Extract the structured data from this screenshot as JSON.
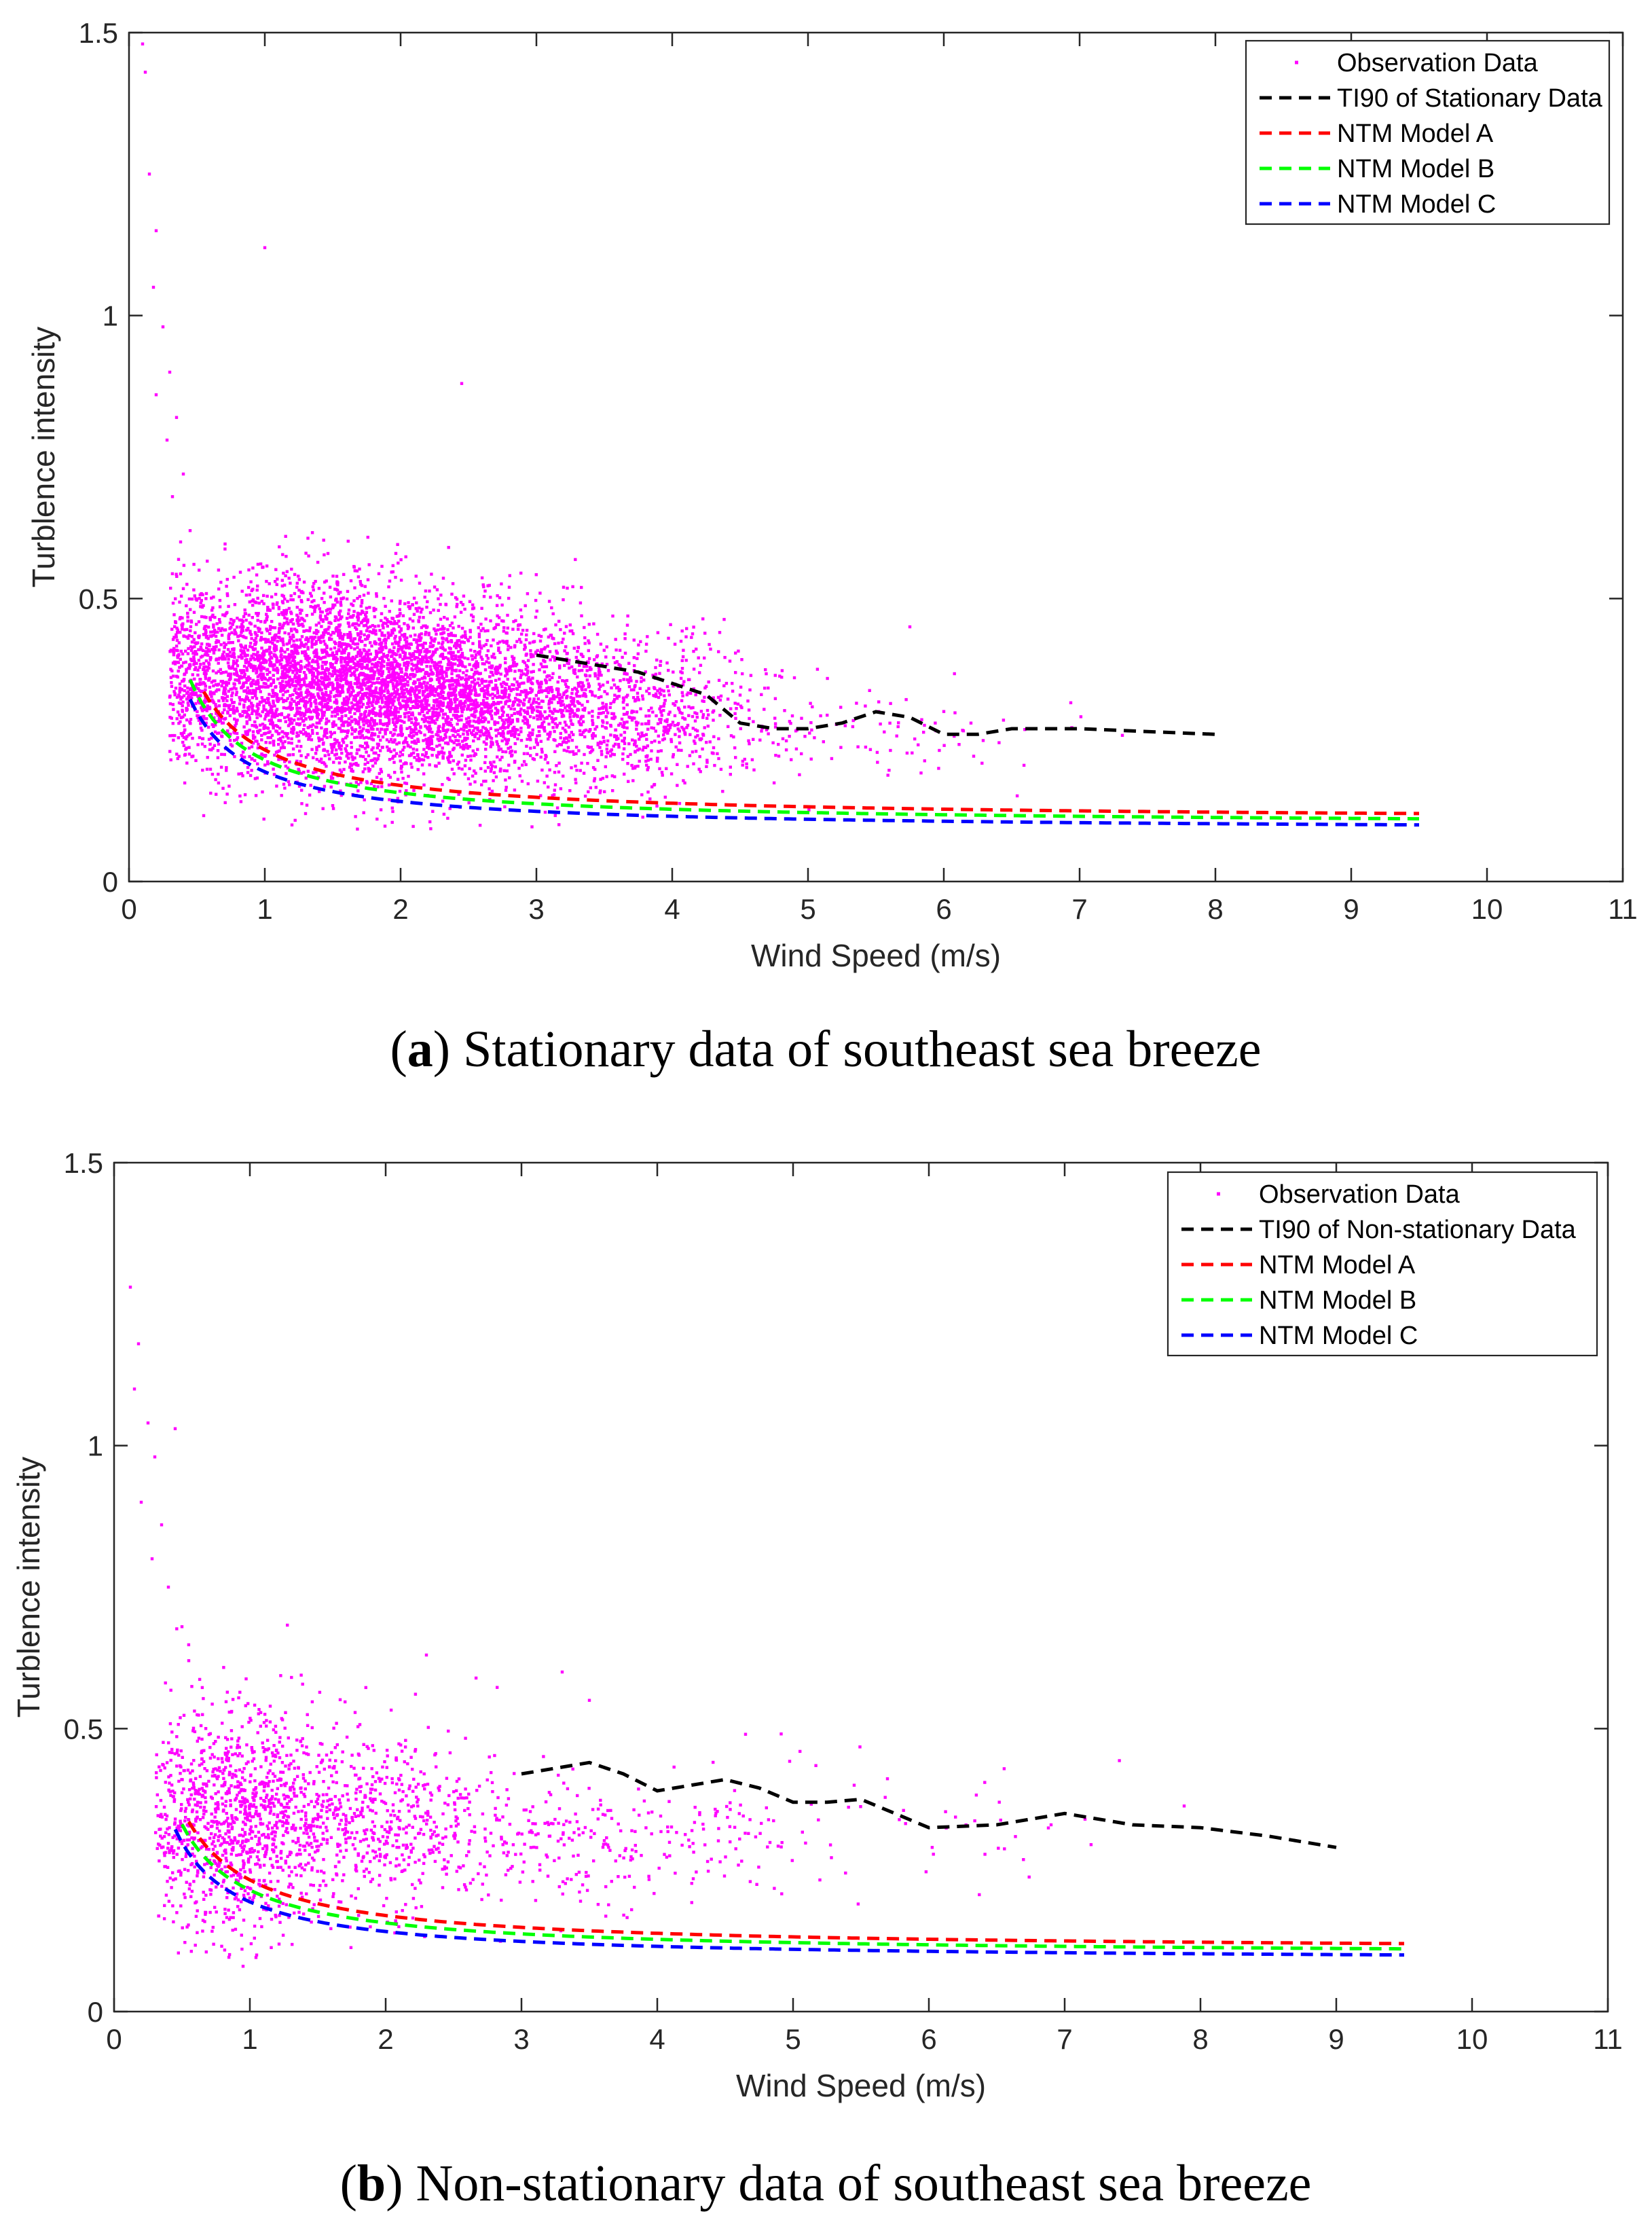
{
  "chart_data": [
    {
      "type": "scatter",
      "caption_letter": "a",
      "caption_text": "Stationary data of southeast sea breeze",
      "xlabel": "Wind Speed (m/s)",
      "ylabel": "Turblence intensity",
      "xlim": [
        0,
        11
      ],
      "ylim": [
        0,
        1.5
      ],
      "xticks": [
        "0",
        "1",
        "2",
        "3",
        "4",
        "5",
        "6",
        "7",
        "8",
        "9",
        "10",
        "11"
      ],
      "yticks": [
        "0",
        "0.5",
        "1",
        "1.5"
      ],
      "legend_position": "top-right",
      "scatter": {
        "name": "Observation Data",
        "color": "#ff00ff",
        "count": 6500,
        "clusters": [
          {
            "x_mean": 1.2,
            "x_sd": 0.55,
            "y_mean": 0.36,
            "y_sd": 0.085,
            "weight": 0.45
          },
          {
            "x_mean": 2.3,
            "x_sd": 0.55,
            "y_mean": 0.33,
            "y_sd": 0.075,
            "weight": 0.4
          },
          {
            "x_mean": 3.6,
            "x_sd": 0.55,
            "y_mean": 0.3,
            "y_sd": 0.07,
            "weight": 0.13
          },
          {
            "x_mean": 5.3,
            "x_sd": 0.8,
            "y_mean": 0.26,
            "y_sd": 0.04,
            "weight": 0.02
          }
        ],
        "outliers": [
          {
            "x": 0.15,
            "y": 1.25
          },
          {
            "x": 0.2,
            "y": 1.15
          },
          {
            "x": 0.18,
            "y": 1.05
          },
          {
            "x": 0.25,
            "y": 0.98
          },
          {
            "x": 0.3,
            "y": 0.9
          },
          {
            "x": 0.2,
            "y": 0.86
          },
          {
            "x": 0.35,
            "y": 0.82
          },
          {
            "x": 0.28,
            "y": 0.78
          },
          {
            "x": 0.4,
            "y": 0.72
          },
          {
            "x": 0.32,
            "y": 0.68
          },
          {
            "x": 0.45,
            "y": 0.62
          },
          {
            "x": 0.38,
            "y": 0.6
          },
          {
            "x": 1.0,
            "y": 1.12
          },
          {
            "x": 0.12,
            "y": 1.43
          },
          {
            "x": 0.1,
            "y": 1.48
          },
          {
            "x": 2.45,
            "y": 0.88
          },
          {
            "x": 5.75,
            "y": 0.45
          },
          {
            "x": 4.35,
            "y": 0.44
          },
          {
            "x": 4.9,
            "y": 0.36
          },
          {
            "x": 3.2,
            "y": 0.52
          },
          {
            "x": 2.8,
            "y": 0.52
          },
          {
            "x": 1.2,
            "y": 0.1
          },
          {
            "x": 1.3,
            "y": 0.12
          },
          {
            "x": 6.2,
            "y": 0.28
          }
        ]
      },
      "series": [
        {
          "name": "TI90 of Stationary Data",
          "color": "#000000",
          "x": [
            3.0,
            3.25,
            3.5,
            3.75,
            4.0,
            4.25,
            4.5,
            4.75,
            5.0,
            5.25,
            5.5,
            5.75,
            6.0,
            6.25,
            6.5,
            7.0,
            7.5,
            8.0
          ],
          "y": [
            0.4,
            0.39,
            0.38,
            0.37,
            0.35,
            0.33,
            0.28,
            0.27,
            0.27,
            0.28,
            0.3,
            0.29,
            0.26,
            0.26,
            0.27,
            0.27,
            0.265,
            0.26
          ]
        },
        {
          "name": "NTM Model A",
          "color": "#ff0000",
          "a": 0.07,
          "b": 0.78,
          "x_start": 0.55,
          "x_end": 9.5
        },
        {
          "name": "NTM Model B",
          "color": "#00ff00",
          "a": 0.06,
          "b": 0.72,
          "x_start": 0.45,
          "x_end": 9.5
        },
        {
          "name": "NTM Model C",
          "color": "#0000ff",
          "a": 0.05,
          "b": 0.65,
          "x_start": 0.45,
          "x_end": 9.5
        }
      ]
    },
    {
      "type": "scatter",
      "caption_letter": "b",
      "caption_text": "Non-stationary data of southeast sea breeze",
      "xlabel": "Wind Speed (m/s)",
      "ylabel": "Turblence intensity",
      "xlim": [
        0,
        11
      ],
      "ylim": [
        0,
        1.5
      ],
      "xticks": [
        "0",
        "1",
        "2",
        "3",
        "4",
        "5",
        "6",
        "7",
        "8",
        "9",
        "10",
        "11"
      ],
      "yticks": [
        "0",
        "0.5",
        "1",
        "1.5"
      ],
      "legend_position": "top-right",
      "scatter": {
        "name": "Observation Data",
        "color": "#ff00ff",
        "count": 2000,
        "clusters": [
          {
            "x_mean": 0.9,
            "x_sd": 0.35,
            "y_mean": 0.34,
            "y_sd": 0.1,
            "weight": 0.55
          },
          {
            "x_mean": 1.9,
            "x_sd": 0.5,
            "y_mean": 0.33,
            "y_sd": 0.08,
            "weight": 0.3
          },
          {
            "x_mean": 3.5,
            "x_sd": 0.7,
            "y_mean": 0.3,
            "y_sd": 0.06,
            "weight": 0.12
          },
          {
            "x_mean": 5.5,
            "x_sd": 1.0,
            "y_mean": 0.33,
            "y_sd": 0.05,
            "weight": 0.03
          }
        ],
        "outliers": [
          {
            "x": 0.12,
            "y": 1.28
          },
          {
            "x": 0.18,
            "y": 1.18
          },
          {
            "x": 0.15,
            "y": 1.1
          },
          {
            "x": 0.25,
            "y": 1.04
          },
          {
            "x": 0.3,
            "y": 0.98
          },
          {
            "x": 0.2,
            "y": 0.9
          },
          {
            "x": 0.45,
            "y": 1.03
          },
          {
            "x": 0.35,
            "y": 0.86
          },
          {
            "x": 0.28,
            "y": 0.8
          },
          {
            "x": 0.4,
            "y": 0.75
          },
          {
            "x": 0.5,
            "y": 0.68
          },
          {
            "x": 0.55,
            "y": 0.62
          },
          {
            "x": 3.3,
            "y": 0.6
          },
          {
            "x": 2.3,
            "y": 0.63
          },
          {
            "x": 4.65,
            "y": 0.49
          },
          {
            "x": 5.45,
            "y": 0.4
          },
          {
            "x": 3.5,
            "y": 0.55
          },
          {
            "x": 0.95,
            "y": 0.08
          },
          {
            "x": 1.05,
            "y": 0.1
          },
          {
            "x": 7.15,
            "y": 0.34
          },
          {
            "x": 6.9,
            "y": 0.33
          }
        ]
      },
      "series": [
        {
          "name": "TI90 of Non-stationary Data",
          "color": "#000000",
          "x": [
            3.0,
            3.25,
            3.5,
            3.75,
            4.0,
            4.25,
            4.5,
            4.75,
            5.0,
            5.25,
            5.5,
            5.75,
            6.0,
            6.5,
            7.0,
            7.5,
            8.0,
            8.5,
            9.0
          ],
          "y": [
            0.42,
            0.43,
            0.44,
            0.42,
            0.39,
            0.4,
            0.41,
            0.395,
            0.37,
            0.37,
            0.375,
            0.35,
            0.325,
            0.33,
            0.35,
            0.33,
            0.325,
            0.31,
            0.29
          ]
        },
        {
          "name": "NTM Model A",
          "color": "#ff0000",
          "a": 0.07,
          "b": 0.78,
          "x_start": 0.55,
          "x_end": 9.5
        },
        {
          "name": "NTM Model B",
          "color": "#00ff00",
          "a": 0.06,
          "b": 0.72,
          "x_start": 0.5,
          "x_end": 9.5
        },
        {
          "name": "NTM Model C",
          "color": "#0000ff",
          "a": 0.05,
          "b": 0.65,
          "x_start": 0.45,
          "x_end": 9.5
        }
      ]
    }
  ]
}
